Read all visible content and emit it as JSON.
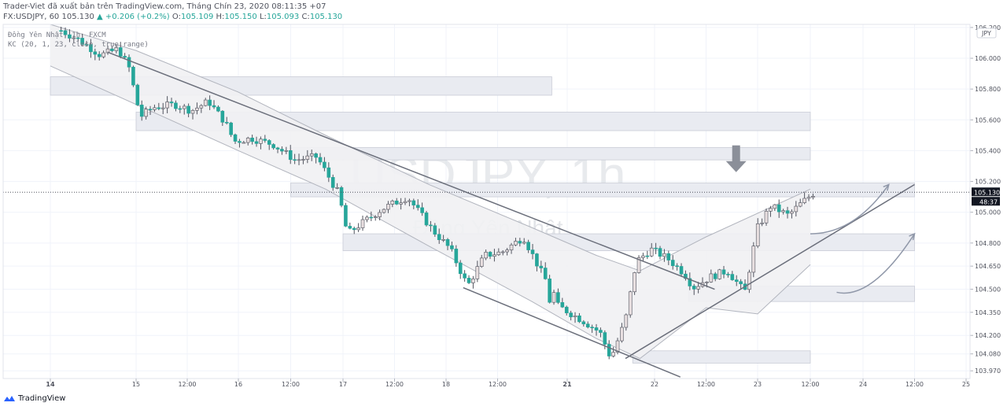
{
  "header": {
    "publisher_line": "Trader-Viet đã xuất bản trên TradingView.com, Tháng Chín 23, 2020 08:11:35 +07",
    "symbol": "FX:USDJPY, 60",
    "last": "105.130",
    "change": "+0.206 (+0.2%)",
    "o_label": "O:",
    "o": "105.109",
    "h_label": "H:",
    "h": "105.150",
    "l_label": "L:",
    "l": "105.093",
    "c_label": "C:",
    "c": "105.130"
  },
  "legend": {
    "line1": "Đồng Yên Nhật, 1h, FXCM",
    "line2": "KC (20, 1, 23, close, true range)"
  },
  "footer": {
    "brand": "TradingView"
  },
  "colors": {
    "up": "#26a69a",
    "down": "#ef5350",
    "bear_body": "#26a69a",
    "bull_body": "#e8dfe0",
    "zone_fill": "#e9ebf1",
    "channel_fill": "#f1f1f3",
    "trend": "#6b6f7b",
    "price_tag": "#131722"
  },
  "chart_data": {
    "type": "candlestick",
    "watermark_title": "USDJPY, 1h",
    "watermark_subtitle": "Đồng Yên Nhật",
    "currency": "JPY",
    "last_price_tag": "105.130",
    "countdown_tag": "48:37",
    "ylim": [
      103.92,
      106.22
    ],
    "y_ticks": [
      "106.200",
      "106.000",
      "105.800",
      "105.600",
      "105.400",
      "105.200",
      "105.000",
      "104.800",
      "104.650",
      "104.500",
      "104.350",
      "104.200",
      "104.080",
      "103.970"
    ],
    "x_ticks": [
      "14",
      "15",
      "12:00",
      "16",
      "12:00",
      "17",
      "12:00",
      "18",
      "12:00",
      "21",
      "22",
      "12:00",
      "23",
      "12:00",
      "24",
      "12:00",
      "25"
    ],
    "x_tick_times": [
      "2020-09-14 00:00",
      "2020-09-15 00:00",
      "2020-09-15 12:00",
      "2020-09-16 00:00",
      "2020-09-16 12:00",
      "2020-09-17 00:00",
      "2020-09-17 12:00",
      "2020-09-18 00:00",
      "2020-09-18 12:00",
      "2020-09-21 00:00",
      "2020-09-22 00:00",
      "2020-09-22 12:00",
      "2020-09-23 00:00",
      "2020-09-23 12:00",
      "2020-09-24 00:00",
      "2020-09-24 12:00",
      "2020-09-25 00:00"
    ],
    "close_path": [
      [
        "2020-09-14 03:00",
        106.18
      ],
      [
        "2020-09-14 08:00",
        106.12
      ],
      [
        "2020-09-14 14:00",
        106.02
      ],
      [
        "2020-09-14 19:00",
        106.06
      ],
      [
        "2020-09-14 22:00",
        105.94
      ],
      [
        "2020-09-15 01:00",
        105.62
      ],
      [
        "2020-09-15 04:00",
        105.68
      ],
      [
        "2020-09-15 09:00",
        105.7
      ],
      [
        "2020-09-15 13:00",
        105.66
      ],
      [
        "2020-09-15 17:00",
        105.72
      ],
      [
        "2020-09-15 21:00",
        105.58
      ],
      [
        "2020-09-15 23:00",
        105.46
      ],
      [
        "2020-09-16 03:00",
        105.48
      ],
      [
        "2020-09-16 08:00",
        105.44
      ],
      [
        "2020-09-16 13:00",
        105.34
      ],
      [
        "2020-09-16 18:00",
        105.36
      ],
      [
        "2020-09-16 23:00",
        105.12
      ],
      [
        "2020-09-17 01:00",
        104.86
      ],
      [
        "2020-09-17 05:00",
        104.94
      ],
      [
        "2020-09-17 09:00",
        105.02
      ],
      [
        "2020-09-17 15:00",
        105.1
      ],
      [
        "2020-09-17 21:00",
        104.88
      ],
      [
        "2020-09-18 01:00",
        104.76
      ],
      [
        "2020-09-18 05:00",
        104.52
      ],
      [
        "2020-09-18 09:00",
        104.72
      ],
      [
        "2020-09-18 13:00",
        104.74
      ],
      [
        "2020-09-18 18:00",
        104.84
      ],
      [
        "2020-09-18 22:00",
        104.62
      ],
      [
        "2020-09-19 00:00",
        104.52
      ],
      [
        "2020-09-19 03:00",
        104.3
      ],
      [
        "2020-09-19 07:00",
        104.4
      ],
      [
        "2020-09-19 12:00",
        104.48
      ],
      [
        "2020-09-19 18:00",
        104.4
      ],
      [
        "2020-09-21 04:00",
        104.3
      ],
      [
        "2020-09-21 09:00",
        104.22
      ],
      [
        "2020-09-21 12:00",
        104.05
      ],
      [
        "2020-09-21 16:00",
        104.3
      ],
      [
        "2020-09-21 19:00",
        104.68
      ],
      [
        "2020-09-21 23:00",
        104.76
      ],
      [
        "2020-09-22 03:00",
        104.7
      ],
      [
        "2020-09-22 07:00",
        104.6
      ],
      [
        "2020-09-22 09:00",
        104.51
      ],
      [
        "2020-09-22 13:00",
        104.58
      ],
      [
        "2020-09-22 17:00",
        104.62
      ],
      [
        "2020-09-22 21:00",
        104.48
      ],
      [
        "2020-09-23 00:00",
        104.9
      ],
      [
        "2020-09-23 03:00",
        105.04
      ],
      [
        "2020-09-23 07:00",
        104.98
      ],
      [
        "2020-09-23 10:00",
        105.06
      ],
      [
        "2020-09-23 13:00",
        105.13
      ]
    ],
    "keltner_channel": {
      "name": "KC (20, 1, 23, close, true range)",
      "upper": [
        [
          "2020-09-14 00:00",
          106.25
        ],
        [
          "2020-09-15 00:00",
          106.05
        ],
        [
          "2020-09-16 00:00",
          105.78
        ],
        [
          "2020-09-16 20:00",
          105.5
        ],
        [
          "2020-09-17 20:00",
          105.18
        ],
        [
          "2020-09-18 20:00",
          104.9
        ],
        [
          "2020-09-21 08:00",
          104.72
        ],
        [
          "2020-09-21 20:00",
          104.62
        ],
        [
          "2020-09-22 12:00",
          104.84
        ],
        [
          "2020-09-23 12:00",
          105.15
        ]
      ],
      "lower": [
        [
          "2020-09-14 00:00",
          105.95
        ],
        [
          "2020-09-15 00:00",
          105.7
        ],
        [
          "2020-09-16 00:00",
          105.4
        ],
        [
          "2020-09-16 20:00",
          105.15
        ],
        [
          "2020-09-17 20:00",
          104.78
        ],
        [
          "2020-09-18 20:00",
          104.42
        ],
        [
          "2020-09-21 08:00",
          104.18
        ],
        [
          "2020-09-21 20:00",
          104.05
        ],
        [
          "2020-09-22 12:00",
          104.38
        ],
        [
          "2020-09-23 00:00",
          104.34
        ],
        [
          "2020-09-23 12:00",
          104.66
        ]
      ]
    },
    "zones": [
      {
        "from": "2020-09-14 00:00",
        "to": "2020-09-19 07:00",
        "y": [
          105.76,
          105.88
        ]
      },
      {
        "from": "2020-09-15 00:00",
        "to": "2020-09-23 12:00",
        "y": [
          105.53,
          105.65
        ]
      },
      {
        "from": "2020-09-16 12:00",
        "to": "2020-09-23 12:00",
        "y": [
          105.34,
          105.42
        ]
      },
      {
        "from": "2020-09-16 12:00",
        "to": "2020-09-24 12:00",
        "y": [
          105.1,
          105.19
        ]
      },
      {
        "from": "2020-09-17 00:00",
        "to": "2020-09-24 12:00",
        "y": [
          104.75,
          104.86
        ]
      },
      {
        "from": "2020-09-22 08:00",
        "to": "2020-09-24 12:00",
        "y": [
          104.42,
          104.52
        ]
      },
      {
        "from": "2020-09-21 18:00",
        "to": "2020-09-23 12:00",
        "y": [
          104.02,
          104.1
        ]
      }
    ],
    "trend_lines": [
      {
        "from": [
          "2020-09-14 16:00",
          106.04
        ],
        "to": [
          "2020-09-22 14:00",
          104.5
        ]
      },
      {
        "from": [
          "2020-09-18 04:00",
          104.51
        ],
        "to": [
          "2020-09-22 06:00",
          103.93
        ]
      },
      {
        "from": [
          "2020-09-21 16:00",
          104.05
        ],
        "to": [
          "2020-09-24 12:00",
          105.18
        ]
      }
    ],
    "drawings": {
      "down_arrow_at": [
        "2020-09-22 19:00",
        105.25
      ],
      "projected_paths": [
        [
          [
            "2020-09-23 12:00",
            104.86
          ],
          [
            "2020-09-23 22:00",
            104.86
          ],
          [
            "2020-09-24 06:00",
            105.18
          ]
        ],
        [
          [
            "2020-09-23 18:00",
            104.48
          ],
          [
            "2020-09-24 02:00",
            104.43
          ],
          [
            "2020-09-24 12:00",
            104.86
          ]
        ]
      ]
    }
  }
}
